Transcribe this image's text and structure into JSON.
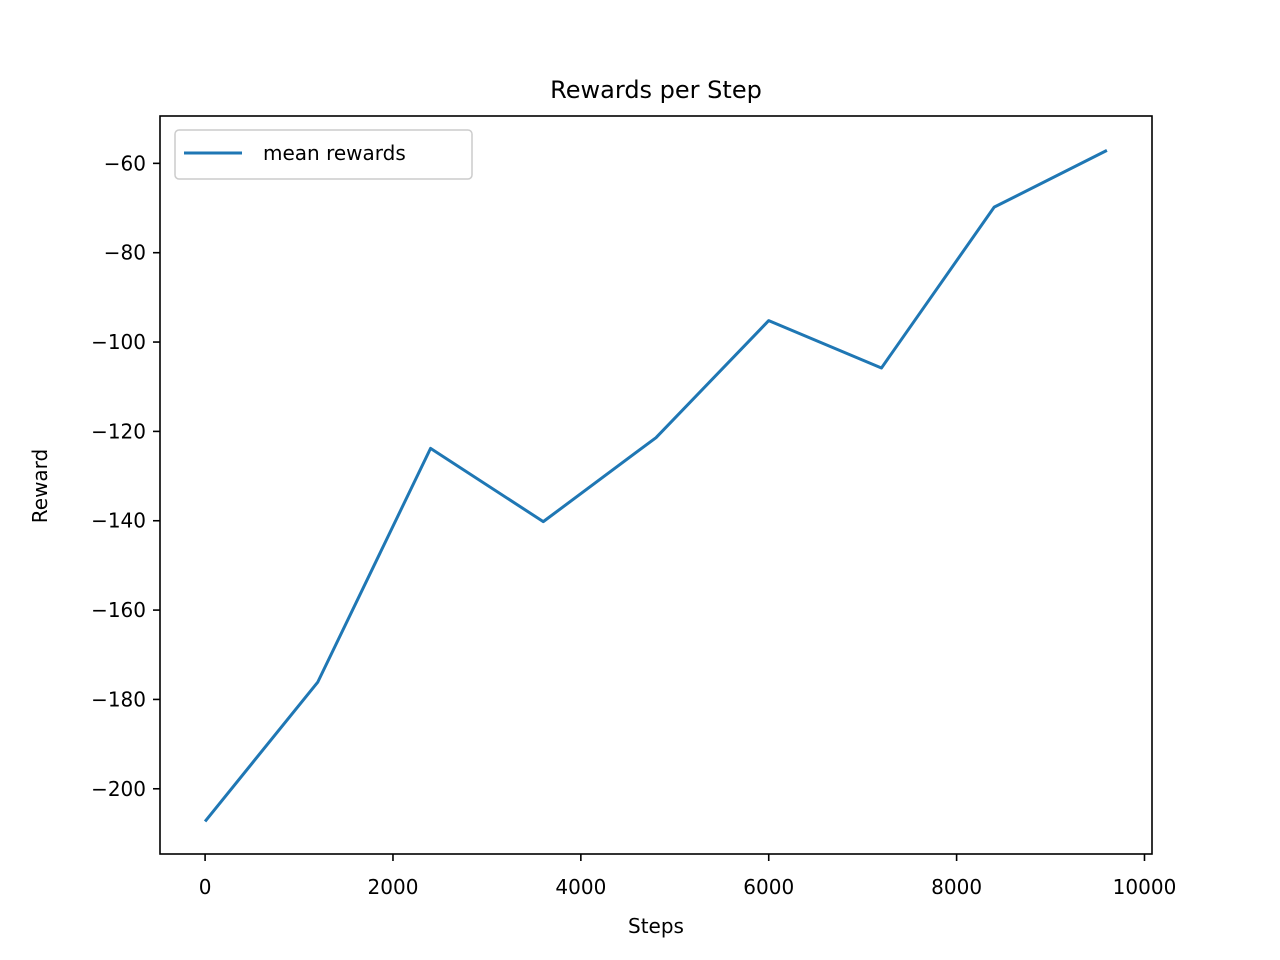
{
  "chart_data": {
    "type": "line",
    "title": "Rewards per Step",
    "xlabel": "Steps",
    "ylabel": "Reward",
    "xlim": [
      -480,
      10080
    ],
    "ylim": [
      -214.6,
      -49.4
    ],
    "xticks": [
      0,
      2000,
      4000,
      6000,
      8000,
      10000
    ],
    "yticks": [
      -200,
      -180,
      -160,
      -140,
      -120,
      -100,
      -80,
      -60
    ],
    "grid": false,
    "legend_position": "upper-left",
    "series": [
      {
        "name": "mean rewards",
        "color": "#1f77b4",
        "x": [
          0,
          1200,
          2400,
          3600,
          4800,
          6000,
          7200,
          8400,
          9600
        ],
        "y": [
          -207.3,
          -176.1,
          -123.8,
          -140.2,
          -121.4,
          -95.2,
          -105.8,
          -69.8,
          -57.1
        ]
      }
    ]
  }
}
